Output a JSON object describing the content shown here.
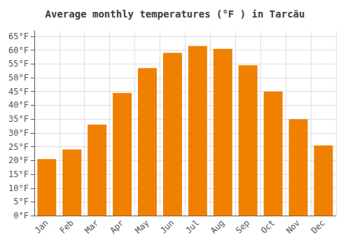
{
  "chart_data": {
    "type": "bar",
    "title": "Average monthly temperatures (°F ) in Tarcău",
    "categories": [
      "Jan",
      "Feb",
      "Mar",
      "Apr",
      "May",
      "Jun",
      "Jul",
      "Aug",
      "Sep",
      "Oct",
      "Nov",
      "Dec"
    ],
    "values": [
      20.5,
      24.0,
      33.0,
      44.5,
      53.5,
      59.0,
      61.5,
      60.5,
      54.5,
      45.0,
      35.0,
      25.5
    ],
    "color": "#F08000",
    "ylim": [
      0,
      67
    ],
    "yticks": [
      {
        "value": 0,
        "label": "0°F"
      },
      {
        "value": 5,
        "label": "5°F"
      },
      {
        "value": 10,
        "label": "10°F"
      },
      {
        "value": 15,
        "label": "15°F"
      },
      {
        "value": 20,
        "label": "20°F"
      },
      {
        "value": 25,
        "label": "25°F"
      },
      {
        "value": 30,
        "label": "30°F"
      },
      {
        "value": 35,
        "label": "35°F"
      },
      {
        "value": 40,
        "label": "40°F"
      },
      {
        "value": 45,
        "label": "45°F"
      },
      {
        "value": 50,
        "label": "50°F"
      },
      {
        "value": 55,
        "label": "55°F"
      },
      {
        "value": 60,
        "label": "60°F"
      },
      {
        "value": 65,
        "label": "65°F"
      }
    ],
    "grid": true
  }
}
